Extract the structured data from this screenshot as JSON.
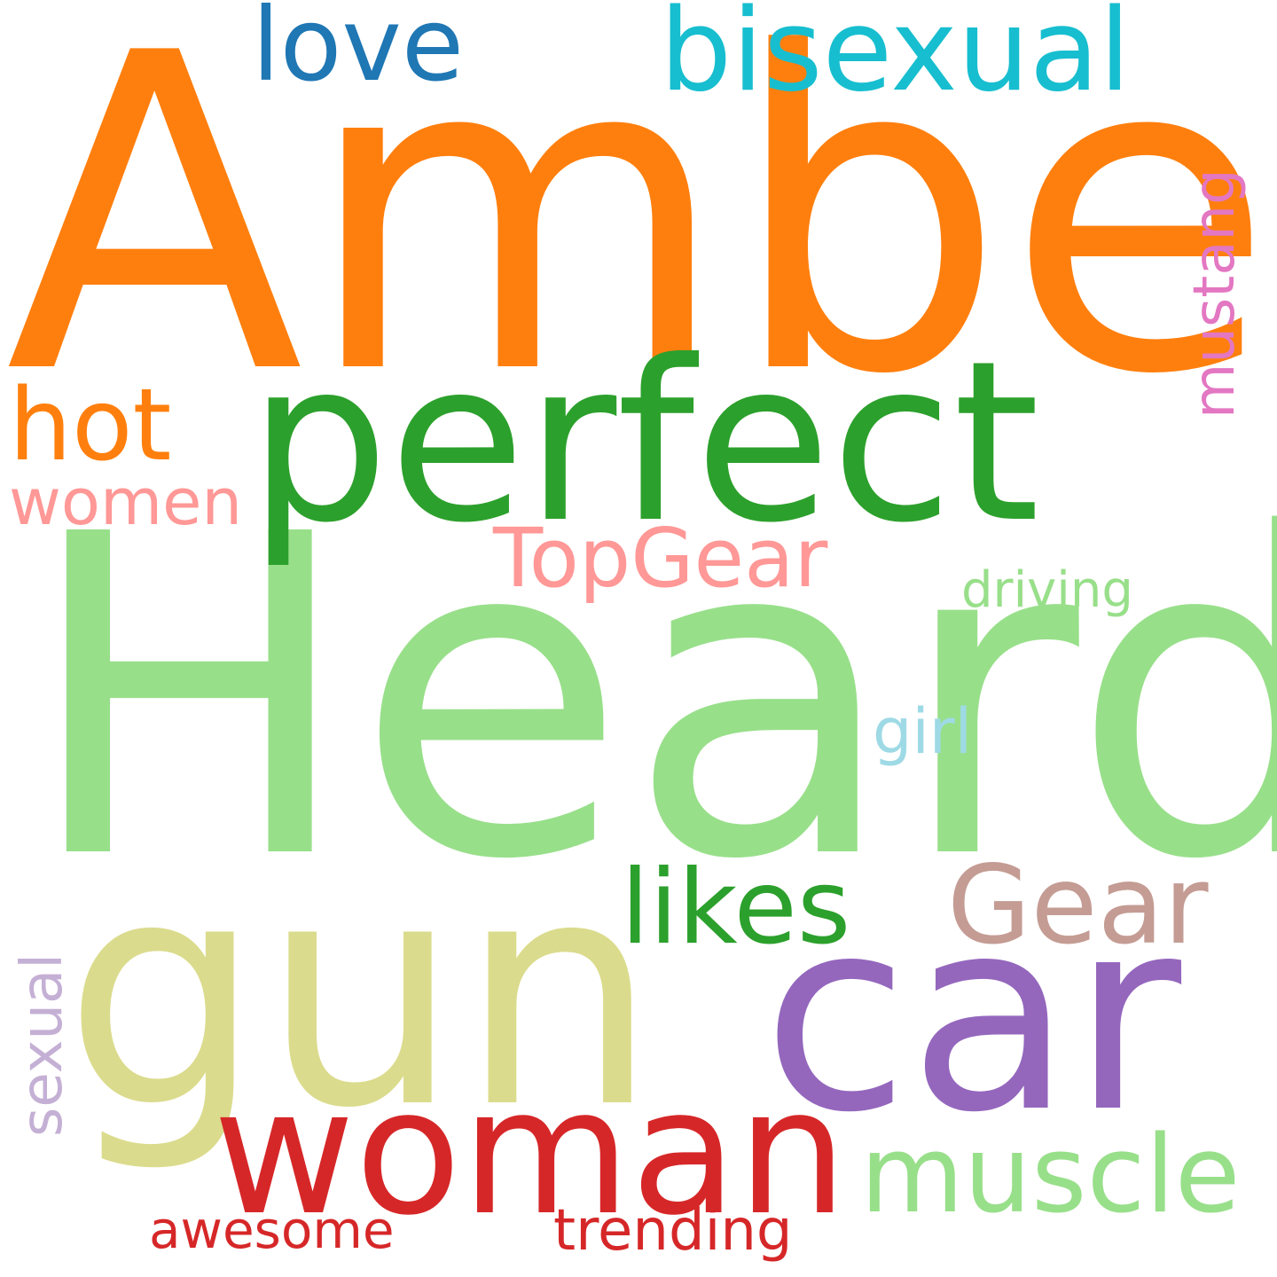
{
  "words": [
    {
      "key": "amber",
      "text": "Amber",
      "color": "#ff7f0e"
    },
    {
      "key": "heard",
      "text": "Heard",
      "color": "#98df8a"
    },
    {
      "key": "perfect",
      "text": "perfect",
      "color": "#2ca02c"
    },
    {
      "key": "gun",
      "text": "gun",
      "color": "#dbdb8d"
    },
    {
      "key": "car",
      "text": "car",
      "color": "#9467bd"
    },
    {
      "key": "woman",
      "text": "woman",
      "color": "#d62728"
    },
    {
      "key": "bisexual",
      "text": "bisexual",
      "color": "#17becf"
    },
    {
      "key": "love",
      "text": "love",
      "color": "#1f77b4"
    },
    {
      "key": "muscle",
      "text": "muscle",
      "color": "#98df8a"
    },
    {
      "key": "likes",
      "text": "likes",
      "color": "#2ca02c"
    },
    {
      "key": "gear",
      "text": "Gear",
      "color": "#c49c94"
    },
    {
      "key": "topgear",
      "text": "TopGear",
      "color": "#ff9896"
    },
    {
      "key": "hot",
      "text": "hot",
      "color": "#ff7f0e"
    },
    {
      "key": "women",
      "text": "women",
      "color": "#ff9896"
    },
    {
      "key": "mustang",
      "text": "mustang",
      "color": "#e377c2"
    },
    {
      "key": "driving",
      "text": "driving",
      "color": "#98df8a"
    },
    {
      "key": "girl",
      "text": "girl",
      "color": "#9edae5"
    },
    {
      "key": "sexual",
      "text": "sexual",
      "color": "#c5b0d5"
    },
    {
      "key": "trending",
      "text": "trending",
      "color": "#d62728"
    },
    {
      "key": "awesome",
      "text": "awesome",
      "color": "#d62728"
    }
  ]
}
